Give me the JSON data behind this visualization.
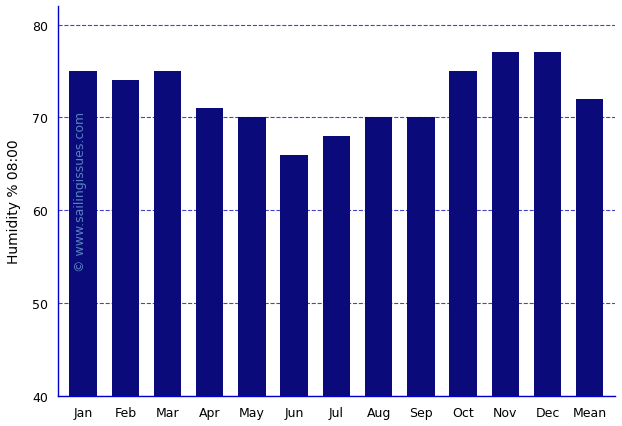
{
  "categories": [
    "Jan",
    "Feb",
    "Mar",
    "Apr",
    "May",
    "Jun",
    "Jul",
    "Aug",
    "Sep",
    "Oct",
    "Nov",
    "Dec",
    "Mean"
  ],
  "values": [
    75,
    74,
    75,
    71,
    70,
    66,
    68,
    70,
    70,
    75,
    77,
    77,
    72
  ],
  "bar_color": "#0a0a7a",
  "ylabel": "Humidity % 08:00",
  "ylim": [
    40,
    82
  ],
  "yticks": [
    40,
    50,
    60,
    70,
    80
  ],
  "grid_color": "#4444cc",
  "watermark_text": "© www.sailingissues.com",
  "watermark_color": "#6699cc",
  "background_color": "#ffffff",
  "spine_color": "#0000cc",
  "tick_color": "#000080"
}
